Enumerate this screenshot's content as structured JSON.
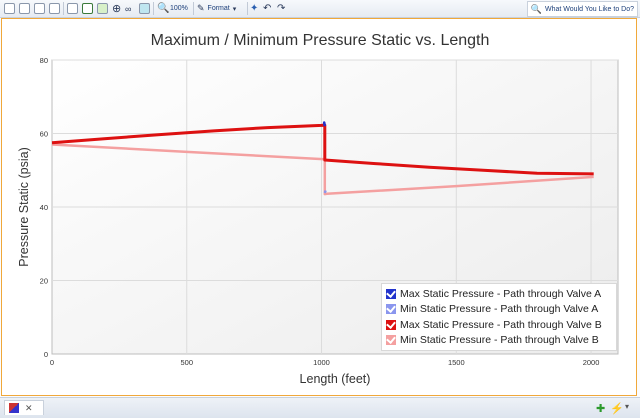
{
  "toolbar": {
    "zoom_label": "100%",
    "format_label": "Format",
    "help_label": "What Would You Like to Do?"
  },
  "chart_data": {
    "type": "line",
    "title": "Maximum / Minimum Pressure Static vs. Length",
    "xlabel": "Length (feet)",
    "ylabel": "Pressure Static (psia)",
    "xlim": [
      0,
      2100
    ],
    "ylim": [
      0,
      80
    ],
    "xticks": [
      0,
      500,
      1000,
      1500,
      2000
    ],
    "yticks": [
      0,
      20,
      40,
      60,
      80
    ],
    "grid": true,
    "legend_position": "bottom-right",
    "series": [
      {
        "name": "Max Static Pressure - Path through Valve A",
        "color": "#2233cc",
        "x": [
          1010,
          1010,
          1012
        ],
        "y": [
          62.5,
          63.0,
          62.0
        ]
      },
      {
        "name": "Min Static Pressure - Path through Valve A",
        "color": "#8a96ee",
        "x": [
          1012,
          1015
        ],
        "y": [
          43.8,
          44.5
        ]
      },
      {
        "name": "Max Static Pressure - Path through Valve B",
        "color": "#dd1111",
        "x": [
          0,
          200,
          400,
          600,
          800,
          1000,
          1012,
          1012,
          1200,
          1400,
          1600,
          1800,
          2010
        ],
        "y": [
          57.5,
          58.6,
          59.7,
          60.7,
          61.6,
          62.2,
          62.3,
          52.8,
          51.8,
          50.8,
          50.0,
          49.2,
          49.0
        ]
      },
      {
        "name": "Min Static Pressure - Path through Valve B",
        "color": "#f4a0a0",
        "x": [
          0,
          500,
          1012,
          1012,
          1020,
          1500,
          2010
        ],
        "y": [
          57.0,
          55.0,
          53.0,
          43.5,
          43.6,
          45.7,
          48.2
        ]
      }
    ]
  }
}
